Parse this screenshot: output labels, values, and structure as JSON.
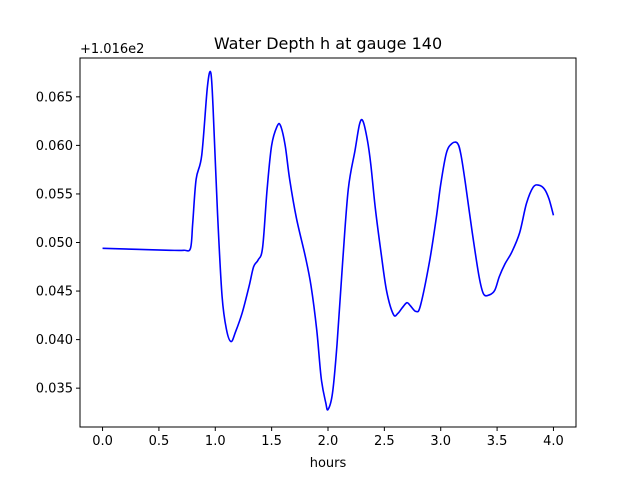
{
  "chart_data": {
    "type": "line",
    "title": "Water Depth h at gauge 140",
    "xlabel": "hours",
    "ylabel": "",
    "y_offset_text": "+1.016e2",
    "xlim": [
      -0.2,
      4.2
    ],
    "ylim": [
      0.031,
      0.069
    ],
    "x_ticks": [
      0.0,
      0.5,
      1.0,
      1.5,
      2.0,
      2.5,
      3.0,
      3.5,
      4.0
    ],
    "x_tick_labels": [
      "0.0",
      "0.5",
      "1.0",
      "1.5",
      "2.0",
      "2.5",
      "3.0",
      "3.5",
      "4.0"
    ],
    "y_ticks": [
      0.035,
      0.04,
      0.045,
      0.05,
      0.055,
      0.06,
      0.065
    ],
    "y_tick_labels": [
      "0.035",
      "0.040",
      "0.045",
      "0.050",
      "0.055",
      "0.060",
      "0.065"
    ],
    "grid": false,
    "series": [
      {
        "color": "#0000ff",
        "x": [
          0.0,
          0.3,
          0.6,
          0.72,
          0.78,
          0.8,
          0.83,
          0.88,
          0.93,
          0.96,
          0.98,
          1.02,
          1.06,
          1.1,
          1.14,
          1.18,
          1.24,
          1.3,
          1.34,
          1.38,
          1.42,
          1.46,
          1.5,
          1.55,
          1.58,
          1.62,
          1.66,
          1.72,
          1.8,
          1.85,
          1.9,
          1.94,
          1.98,
          2.0,
          2.04,
          2.08,
          2.13,
          2.18,
          2.24,
          2.28,
          2.31,
          2.35,
          2.38,
          2.42,
          2.47,
          2.52,
          2.58,
          2.62,
          2.66,
          2.7,
          2.73,
          2.78,
          2.82,
          2.9,
          2.96,
          3.0,
          3.05,
          3.1,
          3.15,
          3.18,
          3.22,
          3.28,
          3.34,
          3.38,
          3.43,
          3.48,
          3.52,
          3.57,
          3.63,
          3.7,
          3.76,
          3.82,
          3.87,
          3.92,
          3.96,
          4.0
        ],
        "values": [
          0.0494,
          0.0493,
          0.0492,
          0.0492,
          0.0494,
          0.052,
          0.0565,
          0.059,
          0.066,
          0.0675,
          0.064,
          0.053,
          0.0445,
          0.041,
          0.0398,
          0.0408,
          0.0428,
          0.0455,
          0.0475,
          0.0482,
          0.0495,
          0.0555,
          0.06,
          0.062,
          0.062,
          0.06,
          0.0565,
          0.0525,
          0.0485,
          0.0455,
          0.041,
          0.036,
          0.0335,
          0.0328,
          0.0345,
          0.0395,
          0.048,
          0.0555,
          0.0595,
          0.0622,
          0.0625,
          0.0605,
          0.058,
          0.0535,
          0.049,
          0.045,
          0.0426,
          0.0427,
          0.0433,
          0.0438,
          0.0435,
          0.0429,
          0.0435,
          0.048,
          0.0525,
          0.056,
          0.0592,
          0.0602,
          0.0602,
          0.059,
          0.056,
          0.051,
          0.0465,
          0.0447,
          0.0446,
          0.0451,
          0.0465,
          0.0478,
          0.049,
          0.051,
          0.054,
          0.0557,
          0.0559,
          0.0555,
          0.0545,
          0.0528
        ]
      }
    ]
  }
}
